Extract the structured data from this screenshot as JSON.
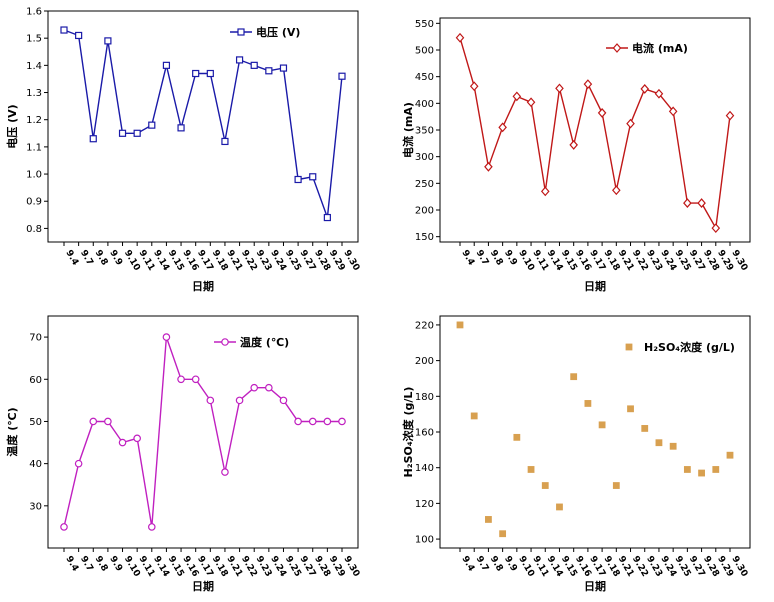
{
  "chart_data": [
    {
      "type": "line",
      "title": "",
      "xlabel": "日期",
      "ylabel": "电压 (V)",
      "legend": "电压 (V)",
      "legend_position": "top-right",
      "ylim": [
        0.75,
        1.6
      ],
      "yticks": [
        "0.8",
        "0.9",
        "1.0",
        "1.1",
        "1.2",
        "1.3",
        "1.4",
        "1.5",
        "1.6"
      ],
      "ytick_values": [
        0.8,
        0.9,
        1.0,
        1.1,
        1.2,
        1.3,
        1.4,
        1.5,
        1.6
      ],
      "color": "#1a1aa8",
      "marker": "square",
      "series": [
        {
          "name": "电压 (V)",
          "values": [
            1.53,
            1.51,
            1.13,
            1.49,
            1.15,
            1.15,
            1.18,
            1.4,
            1.17,
            1.37,
            1.37,
            1.12,
            1.42,
            1.4,
            1.38,
            1.39,
            0.98,
            0.99,
            0.84,
            1.36
          ]
        }
      ],
      "categories": [
        "9.4",
        "9.7",
        "9.8",
        "9.9",
        "9.10",
        "9.11",
        "9.14",
        "9.15",
        "9.16",
        "9.17",
        "9.18",
        "9.21",
        "9.22",
        "9.23",
        "9.24",
        "9.25",
        "9.27",
        "9.28",
        "9.29",
        "9.30"
      ]
    },
    {
      "type": "line",
      "title": "",
      "xlabel": "日期",
      "ylabel": "电流 (mA)",
      "legend": "电流 (mA)",
      "legend_position": "top-right",
      "ylim": [
        140,
        560
      ],
      "yticks": [
        "150",
        "200",
        "250",
        "300",
        "350",
        "400",
        "450",
        "500",
        "550"
      ],
      "ytick_values": [
        150,
        200,
        250,
        300,
        350,
        400,
        450,
        500,
        550
      ],
      "color": "#c01818",
      "marker": "diamond",
      "series": [
        {
          "name": "电流 (mA)",
          "values": [
            523,
            432,
            281,
            355,
            413,
            402,
            235,
            428,
            322,
            436,
            382,
            237,
            362,
            427,
            418,
            385,
            213,
            213,
            166,
            377
          ]
        }
      ],
      "categories": [
        "9.4",
        "9.7",
        "9.8",
        "9.9",
        "9.10",
        "9.11",
        "9.14",
        "9.15",
        "9.16",
        "9.17",
        "9.18",
        "9.21",
        "9.22",
        "9.23",
        "9.24",
        "9.25",
        "9.27",
        "9.28",
        "9.29",
        "9.30"
      ]
    },
    {
      "type": "line",
      "title": "",
      "xlabel": "日期",
      "ylabel": "温度 (℃)",
      "legend": "温度 (℃)",
      "legend_position": "top-right",
      "ylim": [
        20,
        75
      ],
      "yticks": [
        "30",
        "40",
        "50",
        "60",
        "70"
      ],
      "ytick_values": [
        30,
        40,
        50,
        60,
        70
      ],
      "color": "#c020c0",
      "marker": "circle",
      "series": [
        {
          "name": "温度 (℃)",
          "values": [
            25,
            40,
            50,
            50,
            45,
            46,
            25,
            70,
            60,
            60,
            55,
            38,
            55,
            58,
            58,
            55,
            50,
            50,
            50,
            50
          ]
        }
      ],
      "categories": [
        "9.4",
        "9.7",
        "9.8",
        "9.9",
        "9.10",
        "9.11",
        "9.14",
        "9.15",
        "9.16",
        "9.17",
        "9.18",
        "9.21",
        "9.22",
        "9.23",
        "9.24",
        "9.25",
        "9.27",
        "9.28",
        "9.29",
        "9.30"
      ]
    },
    {
      "type": "scatter",
      "title": "",
      "xlabel": "日期",
      "ylabel": "H₂SO₄浓度 (g/L)",
      "legend": "H₂SO₄浓度 (g/L)",
      "legend_position": "top-right",
      "ylim": [
        95,
        225
      ],
      "yticks": [
        "100",
        "120",
        "140",
        "160",
        "180",
        "200",
        "220"
      ],
      "ytick_values": [
        100,
        120,
        140,
        160,
        180,
        200,
        220
      ],
      "color": "#d8a050",
      "marker": "square",
      "series": [
        {
          "name": "H₂SO₄浓度 (g/L)",
          "values": [
            220,
            169,
            111,
            103,
            157,
            139,
            130,
            118,
            191,
            176,
            164,
            130,
            173,
            162,
            154,
            152,
            139,
            137,
            139,
            147
          ]
        }
      ],
      "categories": [
        "9.4",
        "9.7",
        "9.8",
        "9.9",
        "9.10",
        "9.11",
        "9.14",
        "9.15",
        "9.16",
        "9.17",
        "9.18",
        "9.21",
        "9.22",
        "9.23",
        "9.24",
        "9.25",
        "9.27",
        "9.28",
        "9.29",
        "9.30"
      ]
    }
  ]
}
